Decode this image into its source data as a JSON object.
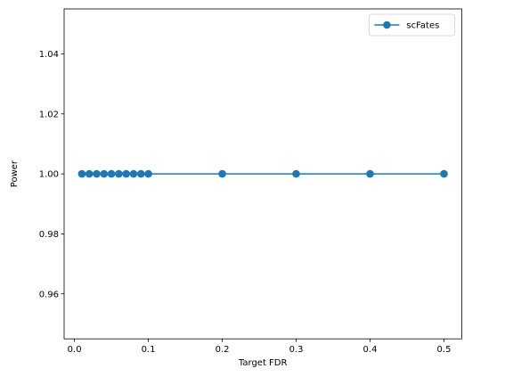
{
  "chart_data": {
    "type": "line",
    "xlabel": "Target FDR",
    "ylabel": "Power",
    "xlim": [
      -0.014,
      0.524
    ],
    "ylim": [
      0.945,
      1.055
    ],
    "xticks": [
      0.0,
      0.1,
      0.2,
      0.3,
      0.4,
      0.5
    ],
    "xtick_labels": [
      "0.0",
      "0.1",
      "0.2",
      "0.3",
      "0.4",
      "0.5"
    ],
    "yticks": [
      0.96,
      0.98,
      1.0,
      1.02,
      1.04
    ],
    "ytick_labels": [
      "0.96",
      "0.98",
      "1.00",
      "1.02",
      "1.04"
    ],
    "grid": false,
    "legend_position": "top-right",
    "series": [
      {
        "name": "scFates",
        "color": "#1f77b4",
        "marker": "circle",
        "x": [
          0.01,
          0.02,
          0.03,
          0.04,
          0.05,
          0.06,
          0.07,
          0.08,
          0.09,
          0.1,
          0.2,
          0.3,
          0.4,
          0.5
        ],
        "y": [
          1.0,
          1.0,
          1.0,
          1.0,
          1.0,
          1.0,
          1.0,
          1.0,
          1.0,
          1.0,
          1.0,
          1.0,
          1.0,
          1.0
        ]
      }
    ]
  }
}
